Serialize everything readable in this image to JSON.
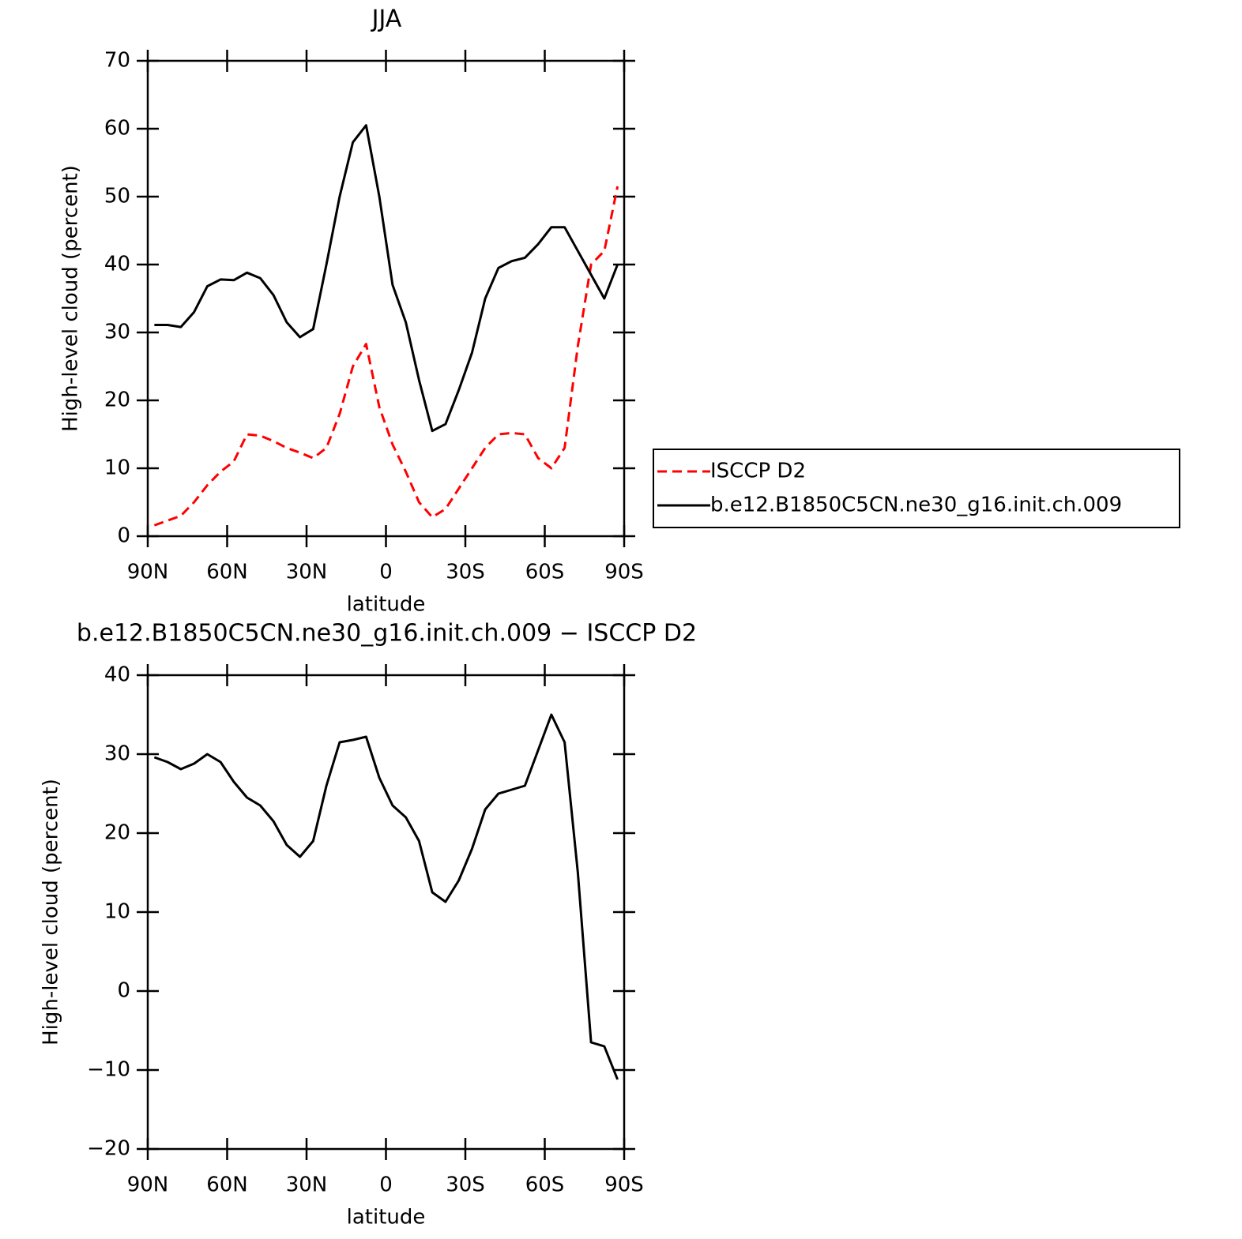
{
  "chart_data": [
    {
      "type": "line",
      "title": "JJA",
      "xlabel": "latitude",
      "ylabel": "High-level cloud (percent)",
      "x": [
        87.5,
        82.5,
        77.5,
        72.5,
        67.5,
        62.5,
        57.5,
        52.5,
        47.5,
        42.5,
        37.5,
        32.5,
        27.5,
        22.5,
        17.5,
        12.5,
        7.5,
        2.5,
        -2.5,
        -7.5,
        -12.5,
        -17.5,
        -22.5,
        -27.5,
        -32.5,
        -37.5,
        -42.5,
        -47.5,
        -52.5,
        -57.5,
        -62.5,
        -67.5,
        -72.5,
        -77.5,
        -82.5,
        -87.5
      ],
      "series": [
        {
          "name": "ISCCP D2",
          "color": "#ff0000",
          "dash": true,
          "values": [
            1.6,
            2.3,
            3,
            5,
            7.5,
            9.5,
            11,
            15,
            14.8,
            14,
            13,
            12.3,
            11.5,
            13,
            18,
            25,
            28.3,
            19,
            13.5,
            9.5,
            5,
            2.8,
            4,
            7,
            10,
            13,
            15,
            15.2,
            15,
            11.5,
            10,
            13,
            28,
            40,
            42,
            51.5
          ]
        },
        {
          "name": "b.e12.B1850C5CN.ne30_g16.init.ch.009",
          "color": "#000000",
          "dash": false,
          "values": [
            31.1,
            31.1,
            30.8,
            33,
            36.8,
            37.8,
            37.7,
            38.8,
            38,
            35.5,
            31.5,
            29.3,
            30.5,
            40,
            50,
            58,
            60.5,
            50,
            37,
            31.5,
            23,
            15.5,
            16.5,
            21.5,
            27,
            35,
            39.5,
            40.5,
            41,
            43,
            45.5,
            45.5,
            42,
            38.5,
            35,
            40
          ]
        }
      ],
      "xlim": [
        90,
        -90
      ],
      "xticks": [
        {
          "value": 90,
          "label": "90N"
        },
        {
          "value": 60,
          "label": "60N"
        },
        {
          "value": 30,
          "label": "30N"
        },
        0,
        {
          "value": -30,
          "label": "30S"
        },
        {
          "value": -60,
          "label": "60S"
        },
        {
          "value": -90,
          "label": "90S"
        }
      ],
      "ylim": [
        0,
        70
      ],
      "yticks": [
        0,
        10,
        20,
        30,
        40,
        50,
        60,
        70
      ],
      "legend": "right"
    },
    {
      "type": "line",
      "title": "b.e12.B1850C5CN.ne30_g16.init.ch.009 − ISCCP D2",
      "xlabel": "latitude",
      "ylabel": "High-level cloud (percent)",
      "x": [
        87.5,
        82.5,
        77.5,
        72.5,
        67.5,
        62.5,
        57.5,
        52.5,
        47.5,
        42.5,
        37.5,
        32.5,
        27.5,
        22.5,
        17.5,
        12.5,
        7.5,
        2.5,
        -2.5,
        -7.5,
        -12.5,
        -17.5,
        -22.5,
        -27.5,
        -32.5,
        -37.5,
        -42.5,
        -47.5,
        -52.5,
        -57.5,
        -62.5,
        -67.5,
        -72.5,
        -77.5,
        -82.5,
        -87.5
      ],
      "color": "#000000",
      "values": [
        29.6,
        29,
        28.1,
        28.8,
        30,
        29,
        26.5,
        24.5,
        23.5,
        21.5,
        18.5,
        17,
        19,
        26,
        31.5,
        31.8,
        32.2,
        27,
        23.5,
        22,
        19,
        12.5,
        11.3,
        14,
        18,
        23,
        25,
        25.5,
        26,
        30.5,
        35,
        31.5,
        15,
        -6.5,
        -7,
        -11.2
      ],
      "xlim": [
        90,
        -90
      ],
      "xticks": [
        {
          "value": 90,
          "label": "90N"
        },
        {
          "value": 60,
          "label": "60N"
        },
        {
          "value": 30,
          "label": "30N"
        },
        0,
        {
          "value": -30,
          "label": "30S"
        },
        {
          "value": -60,
          "label": "60S"
        },
        {
          "value": -90,
          "label": "90S"
        }
      ],
      "ylim": [
        -20,
        40
      ],
      "yticks": [
        {
          "value": -20,
          "label": "−20"
        },
        {
          "value": -10,
          "label": "−10"
        },
        0,
        10,
        20,
        30,
        40
      ]
    }
  ]
}
